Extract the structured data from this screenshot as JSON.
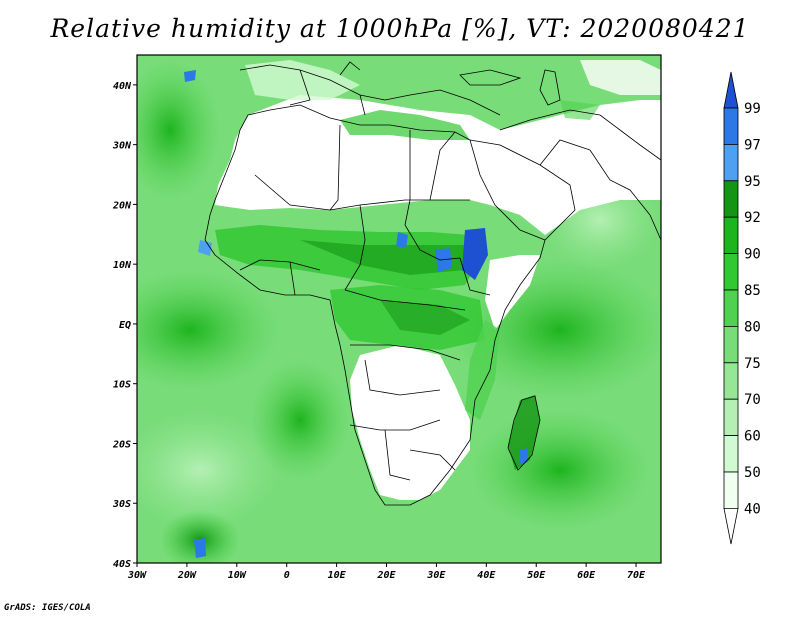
{
  "title": "Relative humidity at 1000hPa [%], VT: 2020080421",
  "footer": "GrADS: IGES/COLA",
  "map": {
    "lon_labels": [
      "30W",
      "20W",
      "10W",
      "0",
      "10E",
      "20E",
      "30E",
      "40E",
      "50E",
      "60E",
      "70E"
    ],
    "lat_labels": [
      "40N",
      "30N",
      "20N",
      "10N",
      "EQ",
      "10S",
      "20S",
      "30S",
      "40S"
    ],
    "lon_range": [
      -30,
      75
    ],
    "lat_range": [
      -40,
      45
    ]
  },
  "colorbar": {
    "levels": [
      "99",
      "97",
      "95",
      "92",
      "90",
      "85",
      "80",
      "75",
      "70",
      "60",
      "50",
      "40"
    ],
    "colors": [
      "#1e50d2",
      "#2c78e6",
      "#4ea0f0",
      "#149614",
      "#1eb41e",
      "#32c832",
      "#50d250",
      "#78dc78",
      "#96e696",
      "#b4f0b4",
      "#d2fad2",
      "#f0fff0"
    ]
  }
}
